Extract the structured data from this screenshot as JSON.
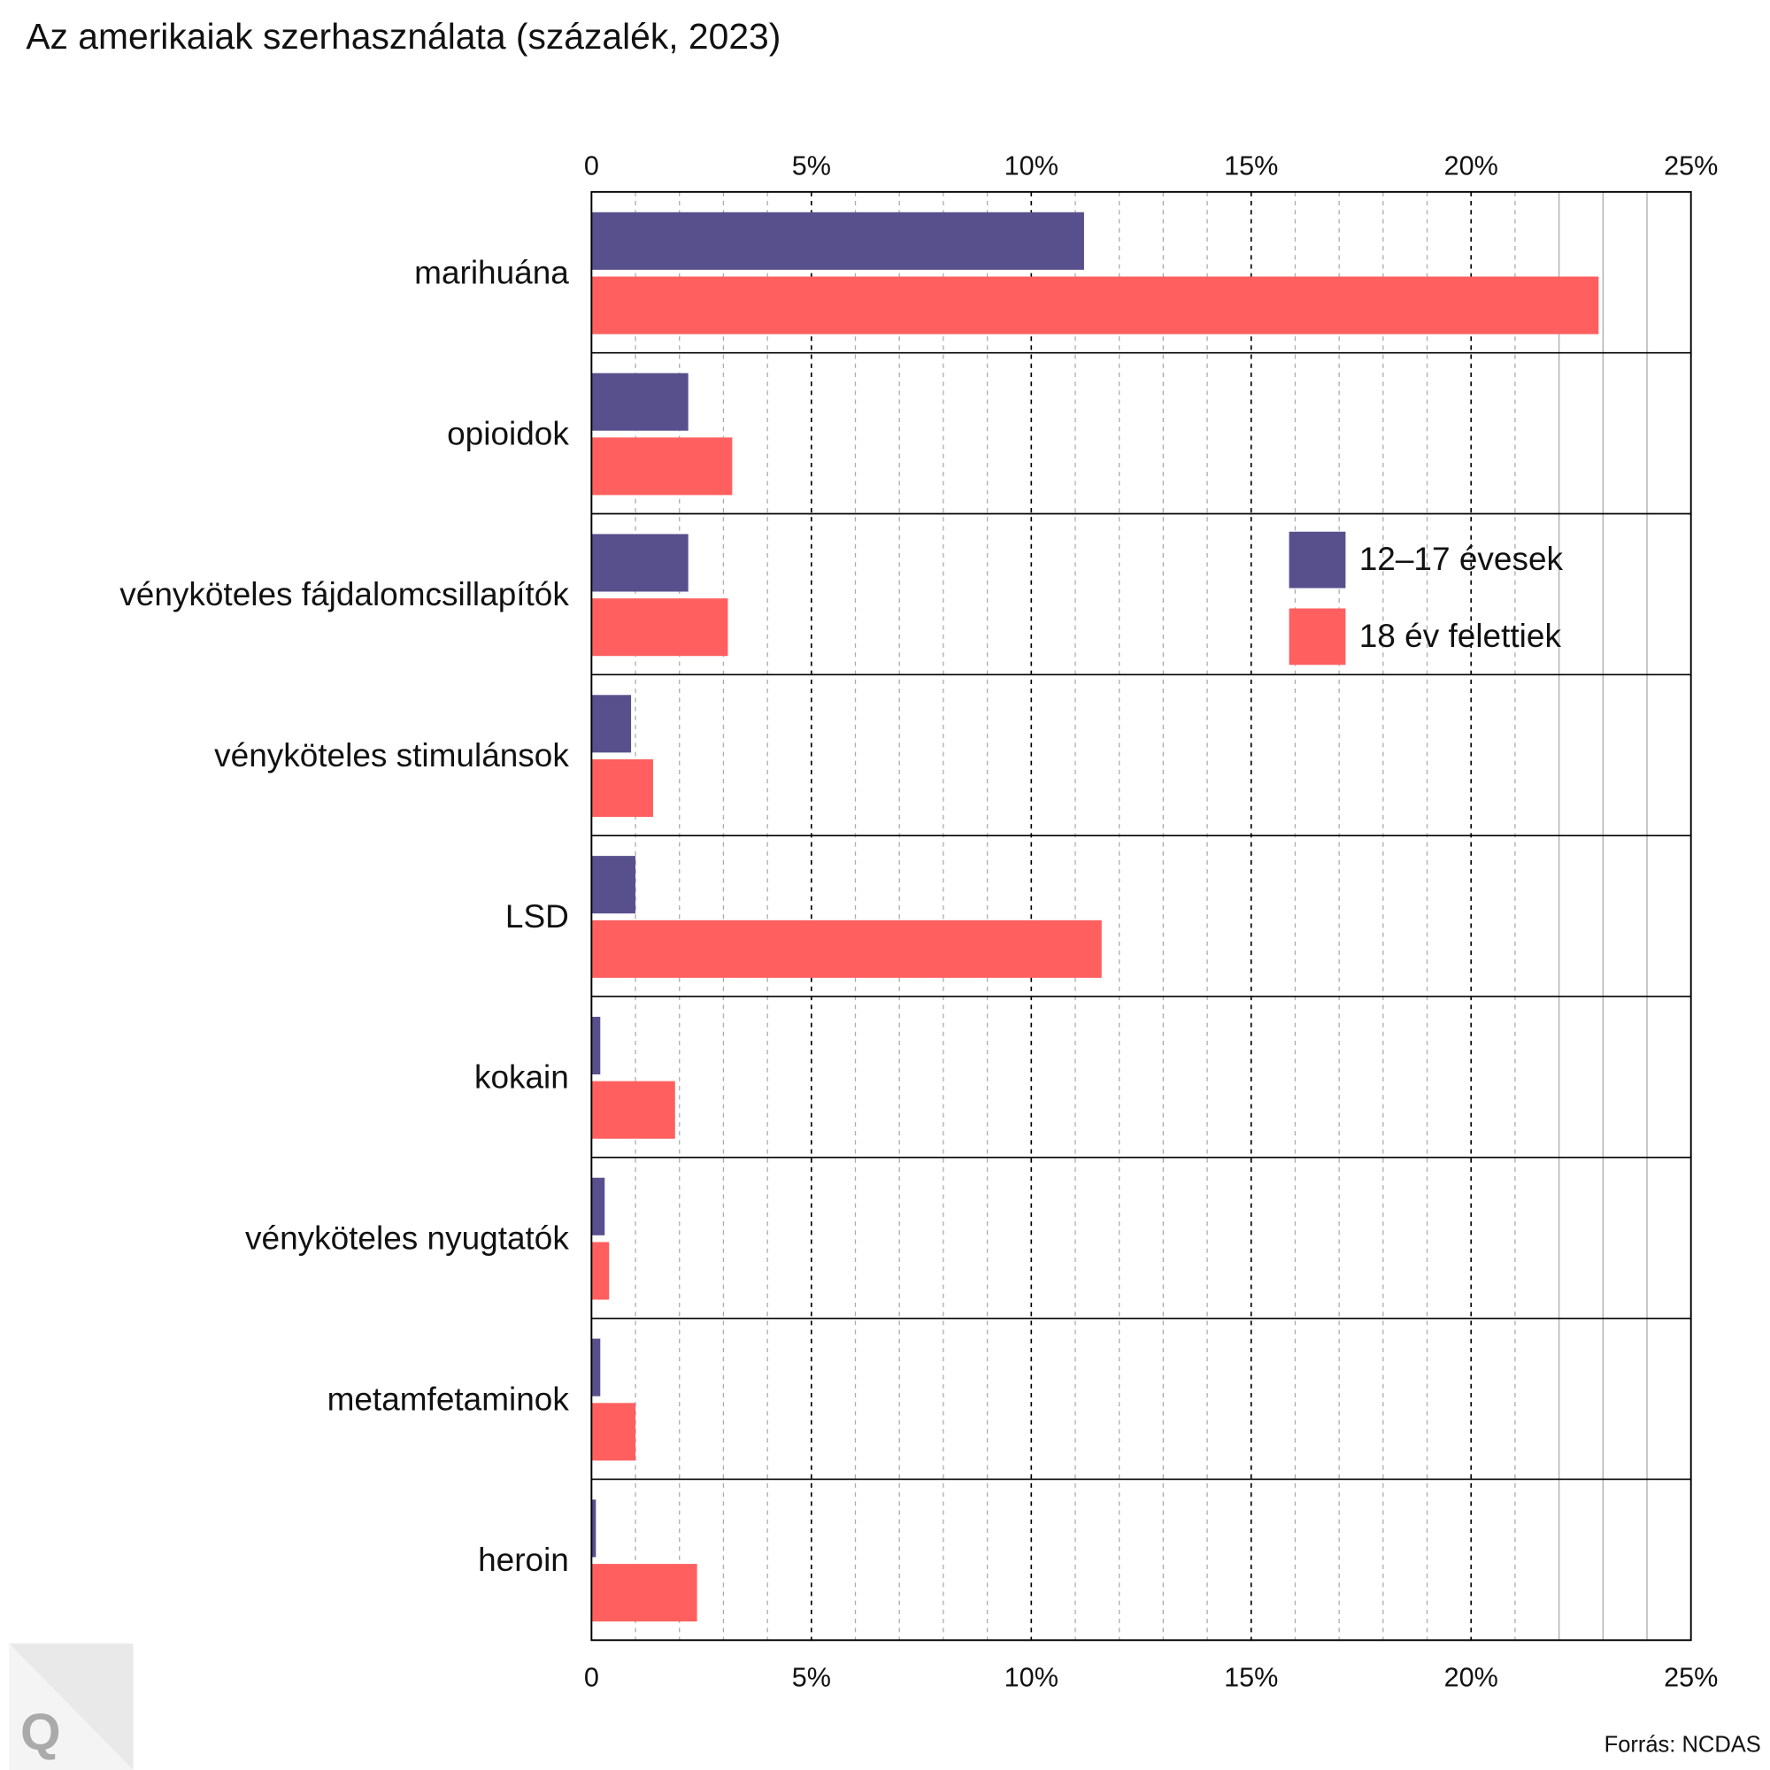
{
  "chart_data": {
    "type": "bar",
    "orientation": "horizontal",
    "title": "Az amerikaiak szerhasználata (százalék, 2023)",
    "categories": [
      "marihuána",
      "opioidok",
      "vényköteles fájdalomcsillapítók",
      "vényköteles stimulánsok",
      "LSD",
      "kokain",
      "vényköteles nyugtatók",
      "metamfetaminok",
      "heroin"
    ],
    "series": [
      {
        "name": "12–17 évesek",
        "color": "#58508d",
        "values": [
          11.2,
          2.2,
          2.2,
          0.9,
          1.0,
          0.2,
          0.3,
          0.2,
          0.1
        ]
      },
      {
        "name": "18 év felettiek",
        "color": "#ff5f5f",
        "values": [
          22.9,
          3.2,
          3.1,
          1.4,
          11.6,
          1.9,
          0.4,
          1.0,
          2.4
        ]
      }
    ],
    "xlim": [
      0,
      25
    ],
    "xticks": [
      "0",
      "5%",
      "10%",
      "15%",
      "20%",
      "25%"
    ],
    "xtick_values": [
      0,
      5,
      10,
      15,
      20,
      25
    ],
    "grid": true,
    "legend": "right",
    "source": "Forrás: NCDAS",
    "logo": "Q"
  }
}
